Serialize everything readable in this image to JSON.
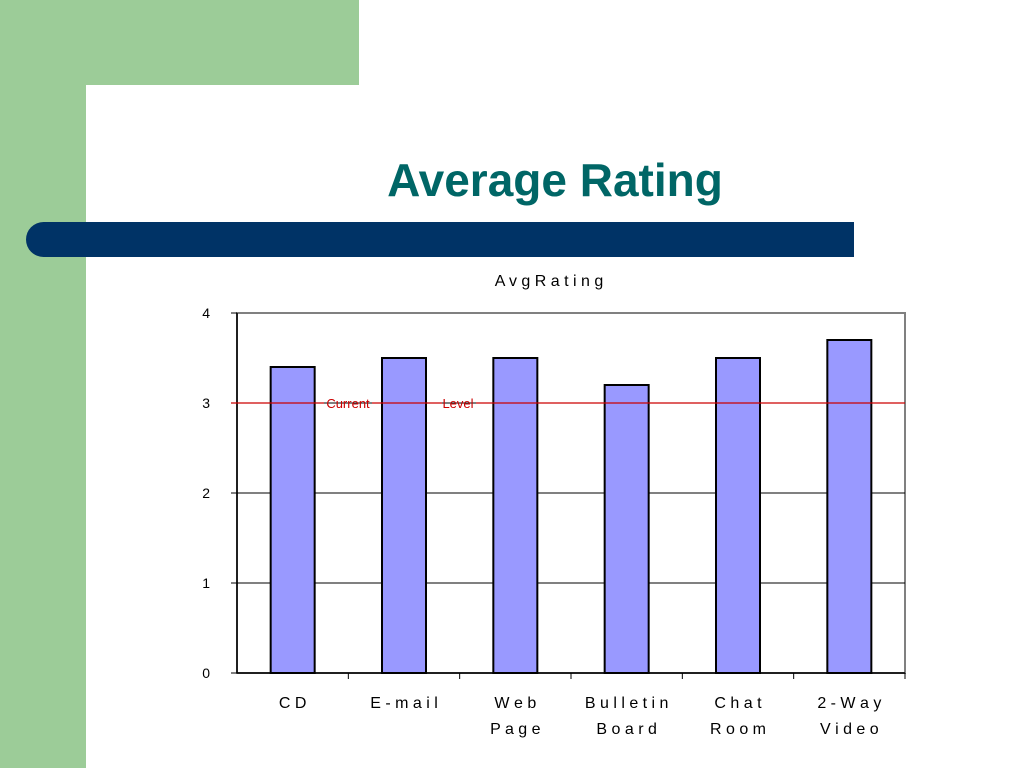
{
  "slide": {
    "title": "Average Rating",
    "colors": {
      "green": "#9ccc98",
      "navy": "#003366",
      "title": "#006666"
    }
  },
  "chart_data": {
    "type": "bar",
    "title": "A v g   R a t i n g",
    "categories": [
      [
        "C D"
      ],
      [
        "E - m a i l"
      ],
      [
        "W e b",
        "P a g e"
      ],
      [
        "B u l l e t i n",
        "B o a r d"
      ],
      [
        "C h a t",
        "R o o m"
      ],
      [
        "2 - W a y",
        "V i d e o"
      ]
    ],
    "values": [
      3.4,
      3.5,
      3.5,
      3.2,
      3.5,
      3.7
    ],
    "ylim": [
      0,
      4
    ],
    "yticks": [
      "0",
      "1",
      "2",
      "3",
      "4"
    ],
    "reference_line": {
      "value": 3,
      "labels": [
        "Current",
        "Level"
      ],
      "color": "#cc0000"
    },
    "bar_color": "#9999ff",
    "grid": true,
    "legend": "none"
  }
}
